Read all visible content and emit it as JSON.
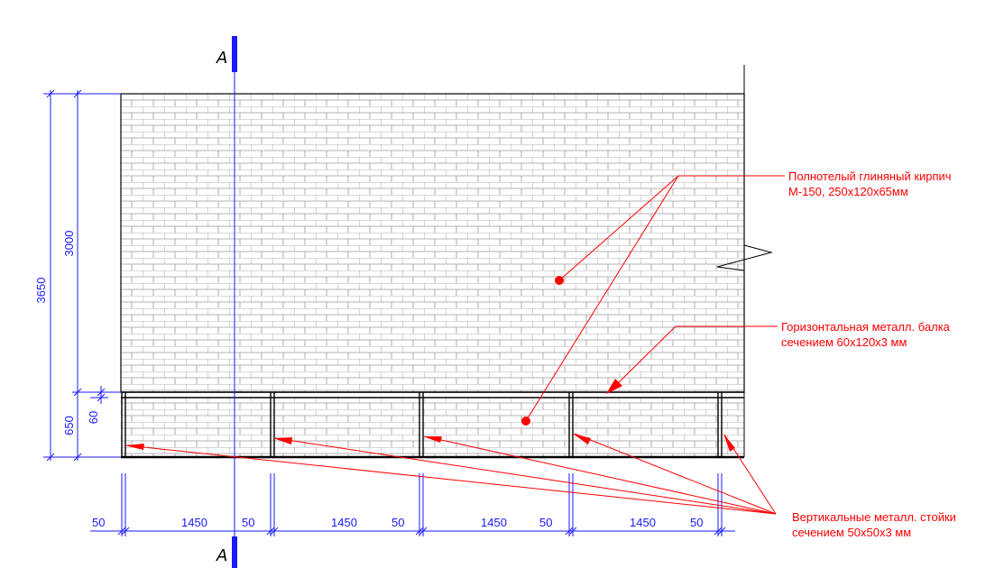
{
  "section": {
    "top_label": "A",
    "bottom_label": "A"
  },
  "dimensions": {
    "vertical": {
      "total": "3650",
      "upper": "3000",
      "lower": "650",
      "beam": "60"
    },
    "horizontal": [
      "50",
      "1450",
      "50",
      "1450",
      "50",
      "1450",
      "50",
      "1450",
      "50"
    ]
  },
  "notes": {
    "brick": {
      "line1": "Полнотелый глиняный кирпич",
      "line2": "М-150, 250х120х65мм"
    },
    "beam": {
      "line1": "Горизонтальная металл. балка",
      "line2": "сечением 60х120х3 мм"
    },
    "posts": {
      "line1": "Вертикальные металл. стойки",
      "line2": "сечением 50х50х3 мм"
    }
  },
  "colors": {
    "dimension": "#1a1aff",
    "annotation": "#ff0000",
    "outline": "#000000",
    "brick_line": "#9a9a9a"
  }
}
